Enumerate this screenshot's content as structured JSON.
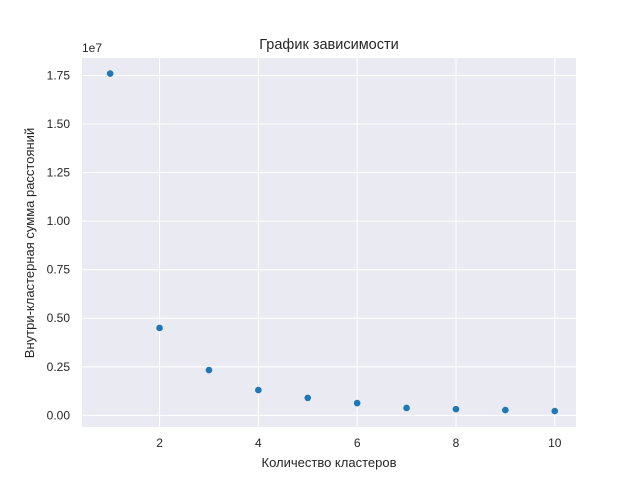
{
  "chart_data": {
    "type": "scatter",
    "title": "График зависимости",
    "xlabel": "Количество кластеров",
    "ylabel": "Внутри-кластерная сумма расстояний",
    "y_offset_label": "1e7",
    "x": [
      1,
      2,
      3,
      4,
      5,
      6,
      7,
      8,
      9,
      10
    ],
    "y": [
      17600000,
      4500000,
      2330000,
      1300000,
      900000,
      630000,
      380000,
      320000,
      270000,
      220000
    ],
    "xlim": [
      0.43,
      10.43
    ],
    "ylim": [
      -0.06,
      1.84
    ],
    "x_ticks": [
      2,
      4,
      6,
      8,
      10
    ],
    "x_tick_labels": [
      "2",
      "4",
      "6",
      "8",
      "10"
    ],
    "y_ticks": [
      0.0,
      0.25,
      0.5,
      0.75,
      1.0,
      1.25,
      1.5,
      1.75
    ],
    "y_tick_labels": [
      "0.00",
      "0.25",
      "0.50",
      "0.75",
      "1.00",
      "1.25",
      "1.50",
      "1.75"
    ],
    "grid": true,
    "colors": {
      "plot_bg": "#eaeaf2",
      "grid": "#ffffff",
      "marker": "#1f77b4",
      "text": "#262626"
    }
  }
}
